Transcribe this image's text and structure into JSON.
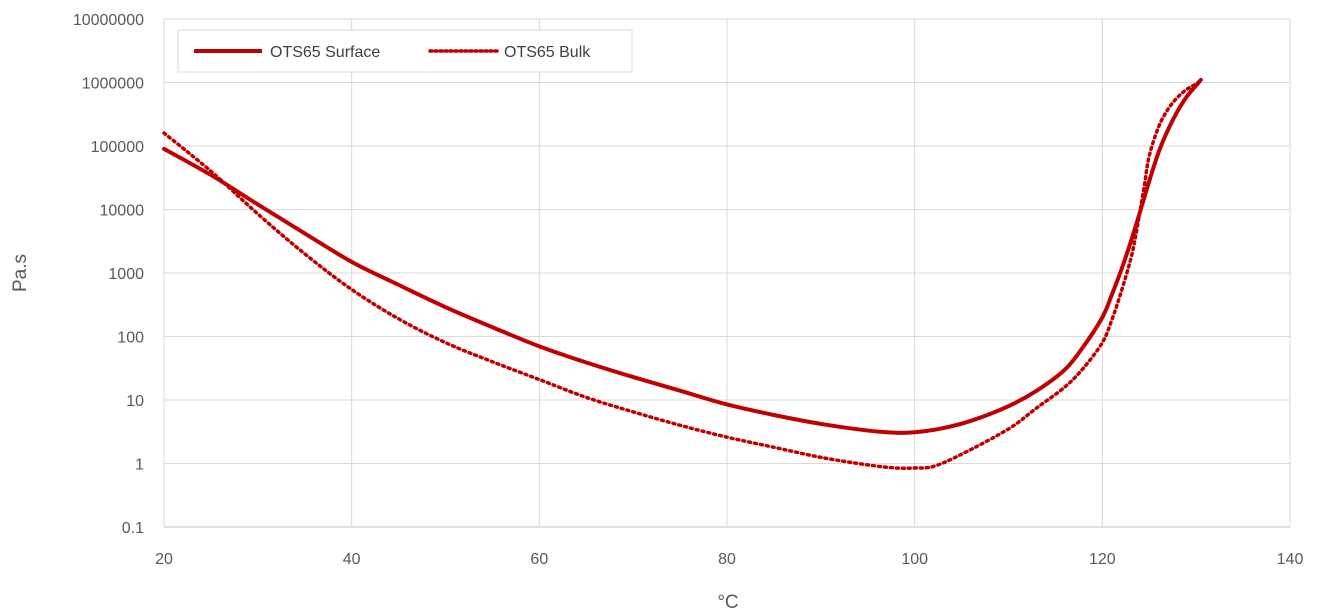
{
  "chart_data": {
    "type": "line",
    "title": "",
    "xlabel": "°C",
    "ylabel": "Pa.s",
    "xlim": [
      20,
      140
    ],
    "ylim": [
      0.1,
      10000000
    ],
    "y_scale": "log",
    "x_ticks": [
      20,
      40,
      60,
      80,
      100,
      120,
      140
    ],
    "x_tick_labels": [
      "20",
      "40",
      "60",
      "80",
      "100",
      "120",
      "140"
    ],
    "y_ticks": [
      0.1,
      1,
      10,
      100,
      1000,
      10000,
      100000,
      1000000,
      10000000
    ],
    "y_tick_labels": [
      "0.1",
      "1",
      "10",
      "100",
      "1000",
      "10000",
      "100000",
      "1000000",
      "10000000"
    ],
    "grid": true,
    "legend_position": "top-left",
    "series": [
      {
        "name": "OTS65 Surface",
        "style": "solid",
        "color": "#C00000",
        "x": [
          20,
          25,
          30,
          35,
          40,
          45,
          50,
          55,
          60,
          65,
          70,
          75,
          80,
          85,
          90,
          95,
          98,
          100,
          103,
          106,
          110,
          113,
          116,
          118,
          120,
          121,
          122,
          123,
          124,
          125,
          126,
          127,
          128,
          129,
          130,
          130.5
        ],
        "y": [
          90000,
          35000,
          12000,
          4200,
          1500,
          650,
          290,
          140,
          70,
          39,
          23,
          14,
          8.5,
          5.8,
          4.2,
          3.3,
          3.05,
          3.1,
          3.6,
          4.7,
          8,
          14,
          30,
          70,
          200,
          450,
          1100,
          3000,
          9000,
          28000,
          80000,
          180000,
          350000,
          600000,
          900000,
          1100000
        ]
      },
      {
        "name": "OTS65 Bulk",
        "style": "dotted",
        "color": "#C00000",
        "x": [
          20,
          25,
          30,
          35,
          40,
          45,
          50,
          55,
          60,
          65,
          70,
          75,
          80,
          85,
          90,
          95,
          98,
          100,
          102,
          105,
          110,
          113,
          116,
          118,
          120,
          121,
          122,
          123,
          123.5,
          124,
          124.5,
          125,
          126,
          127,
          128,
          129,
          130,
          130.5
        ],
        "y": [
          160000,
          40000,
          8500,
          2000,
          550,
          190,
          80,
          40,
          21,
          11,
          6.5,
          4,
          2.6,
          1.8,
          1.25,
          0.95,
          0.85,
          0.85,
          0.9,
          1.4,
          3.5,
          7.5,
          16,
          32,
          80,
          180,
          500,
          1600,
          3500,
          9000,
          25000,
          70000,
          200000,
          380000,
          580000,
          780000,
          950000,
          1100000
        ]
      }
    ]
  }
}
